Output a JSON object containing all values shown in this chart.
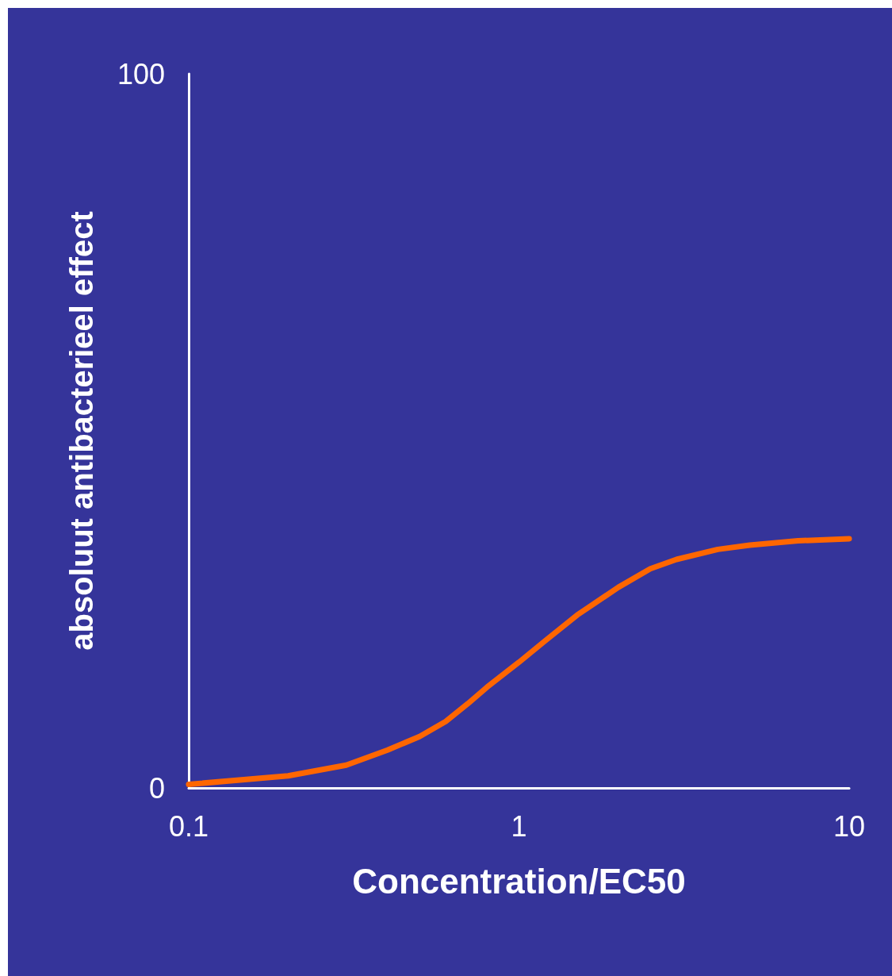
{
  "chart_data": {
    "type": "line",
    "xlabel": "Concentration/EC50",
    "ylabel": "absoluut antibacterieel effect",
    "log": "x",
    "xlim": [
      0.1,
      10
    ],
    "xticks": [
      0.1,
      1,
      10
    ],
    "ylim": [
      0,
      100
    ],
    "yticks": [
      0,
      100
    ],
    "grid": false,
    "marker": "none",
    "line_style": "solid",
    "series": [
      {
        "color": "#ff6600",
        "x": [
          0.1,
          0.2,
          0.3,
          0.4,
          0.5,
          0.6,
          0.7,
          0.8,
          1,
          1.2,
          1.5,
          2,
          2.5,
          3,
          4,
          5,
          7,
          10
        ],
        "values": [
          0.5,
          1.7,
          3.2,
          5.3,
          7.2,
          9.3,
          11.8,
          14.1,
          17.6,
          20.6,
          24.2,
          28.1,
          30.7,
          32,
          33.4,
          34,
          34.6,
          34.9
        ]
      }
    ]
  }
}
